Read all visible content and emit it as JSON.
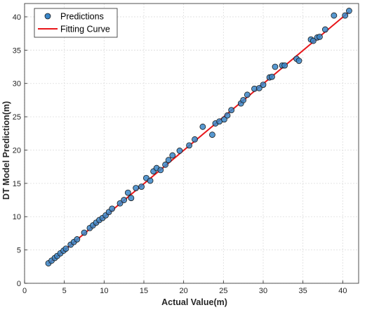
{
  "chart_data": {
    "type": "scatter",
    "xlabel": "Actual Value(m)",
    "ylabel": "DT Model Prediction(m)",
    "xlim": [
      0,
      42
    ],
    "ylim": [
      0,
      42
    ],
    "xticks": [
      "0",
      "5",
      "10",
      "15",
      "20",
      "25",
      "30",
      "35",
      "40"
    ],
    "yticks": [
      "0",
      "5",
      "10",
      "15",
      "20",
      "25",
      "30",
      "35",
      "40"
    ],
    "grid": true,
    "legend_position": "top-left",
    "series": [
      {
        "name": "Predictions",
        "kind": "scatter",
        "color": "#3a86c8",
        "edge_color": "#1a1a1a",
        "x": [
          3.0,
          3.4,
          3.8,
          4.1,
          4.5,
          4.9,
          5.2,
          5.8,
          6.2,
          6.6,
          7.5,
          8.2,
          8.6,
          9.0,
          9.4,
          9.8,
          10.2,
          10.6,
          11.0,
          12.0,
          12.5,
          13.0,
          13.4,
          14.0,
          14.7,
          15.3,
          15.8,
          16.2,
          16.6,
          17.1,
          17.7,
          18.1,
          18.6,
          19.5,
          20.7,
          21.4,
          22.4,
          23.6,
          24.0,
          24.5,
          25.1,
          25.5,
          26.0,
          27.2,
          27.5,
          28.0,
          28.9,
          29.5,
          30.0,
          30.8,
          31.1,
          31.5,
          32.4,
          32.7,
          34.2,
          34.5,
          36.0,
          36.3,
          36.8,
          37.1,
          37.8,
          38.9,
          40.3,
          40.8
        ],
        "y": [
          3.0,
          3.4,
          3.8,
          4.1,
          4.5,
          4.9,
          5.2,
          5.8,
          6.2,
          6.6,
          7.6,
          8.3,
          8.7,
          9.1,
          9.5,
          9.8,
          10.2,
          10.7,
          11.2,
          12.0,
          12.5,
          13.6,
          12.8,
          14.3,
          14.5,
          15.8,
          15.4,
          16.8,
          17.3,
          17.0,
          17.8,
          18.5,
          19.2,
          19.9,
          20.7,
          21.6,
          23.5,
          22.3,
          24.0,
          24.3,
          24.6,
          25.2,
          26.0,
          27.0,
          27.5,
          28.3,
          29.2,
          29.3,
          29.8,
          30.9,
          31.0,
          32.5,
          32.7,
          32.7,
          33.7,
          33.4,
          36.6,
          36.4,
          36.9,
          37.0,
          38.1,
          40.2,
          40.2,
          40.9
        ]
      },
      {
        "name": "Fitting Curve",
        "kind": "line",
        "color": "#e8161a",
        "x": [
          3.0,
          40.8
        ],
        "y": [
          2.95,
          40.75
        ]
      }
    ]
  }
}
